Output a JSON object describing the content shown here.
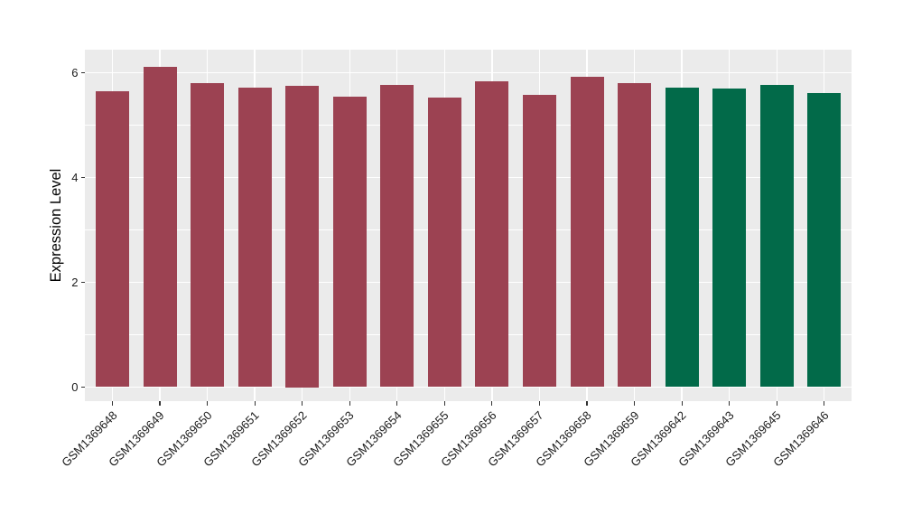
{
  "chart_data": {
    "type": "bar",
    "title": "",
    "xlabel": "",
    "ylabel": "Expression Level",
    "ylim": [
      -0.27,
      6.44
    ],
    "y_ticks": [
      0,
      2,
      4,
      6
    ],
    "y_minor_gridlines": [
      1,
      3,
      5
    ],
    "grid": true,
    "legend_position": "none",
    "categories": [
      "GSM1369648",
      "GSM1369649",
      "GSM1369650",
      "GSM1369651",
      "GSM1369652",
      "GSM1369653",
      "GSM1369654",
      "GSM1369655",
      "GSM1369656",
      "GSM1369657",
      "GSM1369658",
      "GSM1369659",
      "GSM1369642",
      "GSM1369643",
      "GSM1369645",
      "GSM1369646"
    ],
    "values": [
      5.65,
      6.12,
      5.81,
      5.72,
      5.75,
      5.55,
      5.77,
      5.52,
      5.83,
      5.58,
      5.93,
      5.81,
      5.71,
      5.69,
      5.76,
      5.61
    ],
    "bar_colors": [
      "#9c4252",
      "#9c4252",
      "#9c4252",
      "#9c4252",
      "#9c4252",
      "#9c4252",
      "#9c4252",
      "#9c4252",
      "#9c4252",
      "#9c4252",
      "#9c4252",
      "#9c4252",
      "#026a49",
      "#026a49",
      "#026a49",
      "#026a49"
    ]
  },
  "colors": {
    "bar_red": "#9c4252",
    "bar_green": "#026a49",
    "panel_background": "#ebebeb",
    "gridline": "#ffffff",
    "tick_mark": "#333333",
    "axis_text": "#1a1a1a",
    "axis_title": "#000000"
  }
}
